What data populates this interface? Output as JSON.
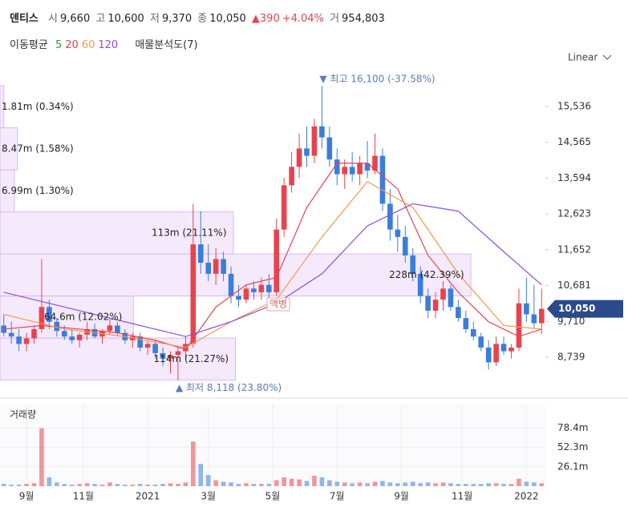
{
  "chart_data": {
    "type": "candlestick",
    "title": "덴티스",
    "header": {
      "open_label": "시",
      "open": "9,660",
      "high_label": "고",
      "high": "10,600",
      "low_label": "저",
      "low": "9,370",
      "close_label": "종",
      "close": "10,050",
      "change": "▲390",
      "change_pct": "+4.04%",
      "volume_label": "거",
      "volume": "954,803"
    },
    "ma_label": "이동평균",
    "profile_title": "매물분석도(7)",
    "scale_mode": "Linear",
    "moving_averages": [
      {
        "name": "5",
        "color": "#2ca02c"
      },
      {
        "name": "20",
        "color": "#e8434d",
        "x": [
          0,
          5,
          10,
          15,
          20,
          24,
          28,
          32,
          36,
          40,
          44,
          48,
          52,
          56,
          60,
          64,
          68,
          71
        ],
        "values": [
          9500,
          9600,
          9500,
          9400,
          9200,
          8950,
          10100,
          10700,
          10900,
          12800,
          14000,
          14000,
          13300,
          11500,
          10500,
          9700,
          9300,
          9500
        ]
      },
      {
        "name": "60",
        "color": "#f39a4c",
        "x": [
          0,
          8,
          16,
          24,
          30,
          36,
          42,
          48,
          54,
          60,
          66,
          71
        ],
        "values": [
          9900,
          9500,
          9300,
          9000,
          9700,
          10300,
          12000,
          13500,
          12800,
          11000,
          9600,
          9500
        ]
      },
      {
        "name": "120",
        "color": "#8a4fe0",
        "x": [
          0,
          8,
          16,
          24,
          30,
          36,
          42,
          48,
          54,
          60,
          66,
          71
        ],
        "values": [
          10500,
          10100,
          9700,
          9300,
          9700,
          10200,
          11000,
          12300,
          12900,
          12700,
          11600,
          10700
        ]
      }
    ],
    "open": [
      9600,
      9400,
      9300,
      9100,
      9250,
      9500,
      10100,
      9700,
      9450,
      9300,
      9200,
      9350,
      9500,
      9300,
      9450,
      9600,
      9400,
      9200,
      9300,
      9000,
      9100,
      8850,
      8700,
      8800,
      8900,
      9100,
      11800,
      11300,
      11000,
      11400,
      11000,
      10400,
      10300,
      10600,
      10500,
      10700,
      10500,
      12200,
      13400,
      13900,
      14400,
      14200,
      15000,
      14700,
      14100,
      13700,
      13900,
      13700,
      14000,
      13800,
      14200,
      12900,
      12200,
      12000,
      11500,
      11000,
      10400,
      10000,
      10300,
      10600,
      10100,
      9800,
      9500,
      9300,
      9000,
      8600,
      9100,
      8900,
      9000,
      10200,
      9900,
      9660
    ],
    "high": [
      9900,
      9700,
      9500,
      9400,
      9600,
      11400,
      10300,
      9800,
      9600,
      9500,
      9400,
      9700,
      9650,
      9500,
      9800,
      9700,
      9500,
      9400,
      9400,
      9200,
      9200,
      9000,
      8900,
      9000,
      9300,
      12900,
      12700,
      11800,
      11700,
      11600,
      11200,
      10700,
      10700,
      10800,
      10900,
      11000,
      12500,
      13600,
      14300,
      14800,
      15000,
      15200,
      16100,
      15000,
      14400,
      14100,
      14300,
      14200,
      14600,
      14800,
      14400,
      13300,
      12600,
      12300,
      11700,
      11200,
      10600,
      10500,
      10800,
      10700,
      10300,
      10000,
      9700,
      9400,
      9200,
      9300,
      9300,
      9100,
      10600,
      10900,
      10700,
      10600
    ],
    "low": [
      9300,
      9100,
      8900,
      8900,
      9100,
      9400,
      9500,
      9300,
      9200,
      9100,
      9000,
      9200,
      9250,
      9100,
      9350,
      9300,
      9100,
      9000,
      8900,
      8800,
      8700,
      8500,
      8300,
      8118,
      8700,
      9000,
      11000,
      10800,
      10700,
      10800,
      10200,
      10100,
      10200,
      10300,
      10300,
      10300,
      10400,
      12000,
      13200,
      13600,
      13900,
      14000,
      14400,
      13900,
      13400,
      13300,
      13500,
      13400,
      13600,
      13700,
      12700,
      11900,
      11600,
      11300,
      10800,
      10200,
      9800,
      9800,
      10000,
      10000,
      9700,
      9400,
      9200,
      8900,
      8400,
      8500,
      8800,
      8700,
      8900,
      9700,
      9500,
      9370
    ],
    "close": [
      9400,
      9300,
      9100,
      9250,
      9500,
      10100,
      9700,
      9450,
      9300,
      9200,
      9350,
      9500,
      9300,
      9450,
      9600,
      9400,
      9200,
      9300,
      9000,
      9100,
      8850,
      8700,
      8800,
      8900,
      9100,
      11800,
      11300,
      11000,
      11400,
      11000,
      10400,
      10300,
      10600,
      10500,
      10700,
      10500,
      12200,
      13400,
      13900,
      14400,
      14200,
      15000,
      14700,
      14100,
      13700,
      13900,
      13700,
      14000,
      13800,
      14200,
      12900,
      12200,
      12000,
      11500,
      11000,
      10400,
      10000,
      10300,
      10600,
      10100,
      9800,
      9500,
      9300,
      9000,
      8600,
      9100,
      8900,
      9000,
      10200,
      9900,
      9660,
      10050
    ],
    "volume": [
      3,
      2,
      2,
      3,
      4,
      78,
      12,
      5,
      3,
      2,
      3,
      4,
      3,
      2,
      5,
      3,
      2,
      2,
      3,
      2,
      2,
      3,
      4,
      3,
      5,
      60,
      30,
      15,
      8,
      6,
      5,
      3,
      4,
      3,
      3,
      3,
      8,
      12,
      10,
      9,
      7,
      14,
      12,
      8,
      6,
      5,
      4,
      5,
      4,
      6,
      7,
      5,
      4,
      5,
      6,
      4,
      5,
      4,
      5,
      4,
      3,
      3,
      3,
      3,
      4,
      4,
      3,
      3,
      10,
      6,
      5,
      4
    ],
    "xlim": [
      -0.5,
      71.5
    ],
    "xticks": [
      {
        "value": 3,
        "label": "9월"
      },
      {
        "value": 10.5,
        "label": "11월"
      },
      {
        "value": 19,
        "label": "2021"
      },
      {
        "value": 27,
        "label": "3월"
      },
      {
        "value": 35.5,
        "label": "5월"
      },
      {
        "value": 44,
        "label": "7월"
      },
      {
        "value": 52.5,
        "label": "9월"
      },
      {
        "value": 60.5,
        "label": "11월"
      },
      {
        "value": 69,
        "label": "2022"
      }
    ],
    "ylim": [
      8109,
      16470
    ],
    "yticks": [
      {
        "value": 8739,
        "label": "8,739"
      },
      {
        "value": 9710,
        "label": "9,710"
      },
      {
        "value": 10681,
        "label": "10,681"
      },
      {
        "value": 11652,
        "label": "11,652"
      },
      {
        "value": 12623,
        "label": "12,623"
      },
      {
        "value": 13594,
        "label": "13,594"
      },
      {
        "value": 14565,
        "label": "14,565"
      },
      {
        "value": 15536,
        "label": "15,536"
      }
    ],
    "current_price": {
      "value": 10050,
      "label": "10,050"
    },
    "volume_title": "거래량",
    "volume_ylim": [
      0,
      110
    ],
    "volume_yticks": [
      {
        "value": 26.1,
        "label": "26.1m"
      },
      {
        "value": 52.3,
        "label": "52.3m"
      },
      {
        "value": 78.4,
        "label": "78.4m"
      }
    ],
    "volume_profile": [
      {
        "low": 14959,
        "high": 16100,
        "volume": 1.81,
        "label": "1.81m (0.34%)"
      },
      {
        "low": 13819,
        "high": 14959,
        "volume": 8.47,
        "label": "8.47m (1.58%)"
      },
      {
        "low": 12679,
        "high": 13819,
        "volume": 6.99,
        "label": "6.99m (1.30%)"
      },
      {
        "low": 11539,
        "high": 12679,
        "volume": 113,
        "label": "113m (21.11%)"
      },
      {
        "low": 10398,
        "high": 11539,
        "volume": 228,
        "label": "228m (42.39%)"
      },
      {
        "low": 9258,
        "high": 10398,
        "volume": 64.6,
        "label": "64.6m (12.02%)"
      },
      {
        "low": 8118,
        "high": 9258,
        "volume": 114,
        "label": "114m (21.27%)"
      }
    ],
    "high_marker": {
      "label": "▼ 최고 16,100 (-37.58%)",
      "value": 16100
    },
    "low_marker": {
      "label": "▲ 최저 8,118 (23.80%)",
      "value": 8118
    },
    "event_label": "액병"
  }
}
